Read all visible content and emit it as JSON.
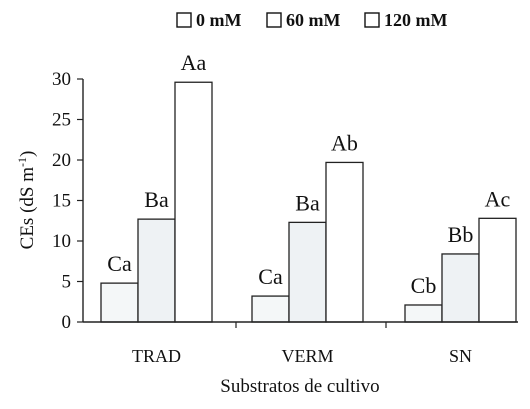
{
  "chart_data": {
    "type": "bar",
    "categories": [
      "TRAD",
      "VERM",
      "SN"
    ],
    "series": [
      {
        "name": "0 mM",
        "values": [
          4.8,
          3.2,
          2.1
        ],
        "labels": [
          "Ca",
          "Ca",
          "Cb"
        ],
        "color": "#f4f7f8"
      },
      {
        "name": "60 mM",
        "values": [
          12.7,
          12.3,
          8.4
        ],
        "labels": [
          "Ba",
          "Ba",
          "Bb"
        ],
        "color": "#eef2f4"
      },
      {
        "name": "120 mM",
        "values": [
          29.6,
          19.7,
          12.8
        ],
        "labels": [
          "Aa",
          "Ab",
          "Ac"
        ],
        "color": "#ffffff"
      }
    ],
    "title": "",
    "xlabel": "Substratos de cultivo",
    "ylabel": "CEs (dS m",
    "ylabel_sup": "-1",
    "ylabel_close": ")",
    "ylim": [
      0,
      30
    ],
    "yticks": [
      0,
      5,
      10,
      15,
      20,
      25,
      30
    ],
    "grid": false,
    "legend_position": "top"
  }
}
